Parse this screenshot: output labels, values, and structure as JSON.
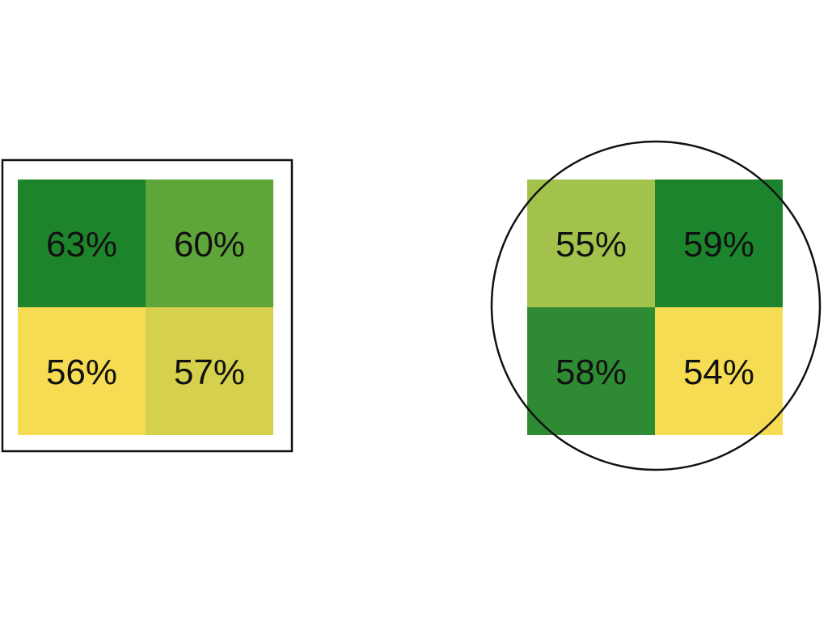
{
  "chart_data": [
    {
      "type": "heatmap",
      "frame": "square",
      "rows": 2,
      "cols": 2,
      "cells": [
        {
          "label": "63%",
          "value": 63,
          "color": "#1e842b"
        },
        {
          "label": "60%",
          "value": 60,
          "color": "#5fa63a"
        },
        {
          "label": "56%",
          "value": 56,
          "color": "#f6dc53"
        },
        {
          "label": "57%",
          "value": 57,
          "color": "#d6d14d"
        }
      ]
    },
    {
      "type": "heatmap",
      "frame": "circle",
      "rows": 2,
      "cols": 2,
      "cells": [
        {
          "label": "55%",
          "value": 55,
          "color": "#a2c24c"
        },
        {
          "label": "59%",
          "value": 59,
          "color": "#1c842d"
        },
        {
          "label": "58%",
          "value": 58,
          "color": "#2f8b33"
        },
        {
          "label": "54%",
          "value": 54,
          "color": "#f6dc53"
        }
      ]
    }
  ]
}
